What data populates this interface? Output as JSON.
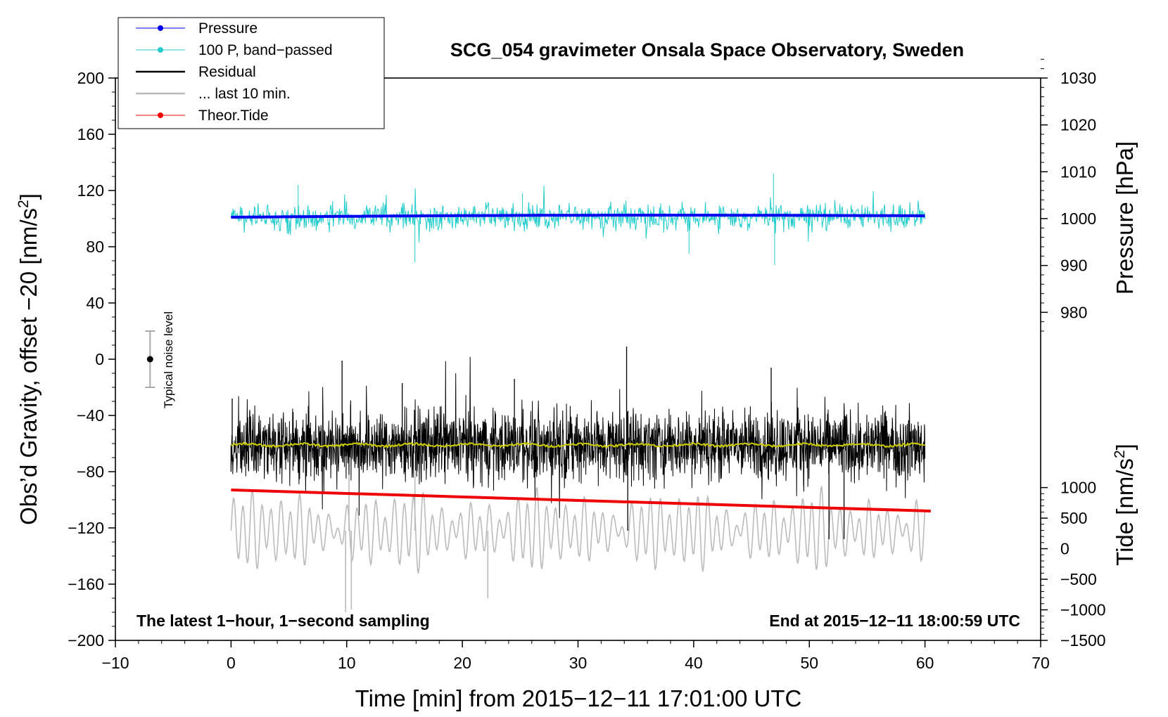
{
  "chart_data": {
    "type": "line",
    "title": "SCG_054 gravimeter Onsala Space Observatory, Sweden",
    "xlabel": "Time [min] from 2015−12−11 17:01:00 UTC",
    "ylabel_left": "Obs’d Gravity, offset −20 [nm/s",
    "ylabel_left_sup": "2",
    "ylabel_left_end": "]",
    "ylabel_pressure": "Pressure [hPa]",
    "ylabel_tide": "Tide [nm/s",
    "ylabel_tide_sup": "2",
    "ylabel_tide_end": "]",
    "xlim": [
      -10,
      70
    ],
    "ylim_left": [
      -200,
      200
    ],
    "xticks": [
      -10,
      0,
      10,
      20,
      30,
      40,
      50,
      60,
      70
    ],
    "xtick_labels": [
      "−10",
      "0",
      "10",
      "20",
      "30",
      "40",
      "50",
      "60",
      "70"
    ],
    "yticks_left": [
      200,
      160,
      120,
      80,
      40,
      0,
      -40,
      -80,
      -120,
      -160,
      -200
    ],
    "ytick_labels_left": [
      "200",
      "160",
      "120",
      "80",
      "40",
      "0",
      "−40",
      "−80",
      "−120",
      "−160",
      "−200"
    ],
    "pressure_ticks": [
      1030,
      1020,
      1010,
      1000,
      990,
      980
    ],
    "pressure_tick_labels": [
      "1030",
      "1020",
      "1010",
      "1000",
      "990",
      "980"
    ],
    "pressure_axis_map": {
      "hpa_at_left_0": 970,
      "hpa_per_left_unit": 0.3
    },
    "tide_ticks": [
      1000,
      500,
      0,
      -500,
      -1000,
      -1500
    ],
    "tide_tick_labels": [
      "1000",
      "500",
      "0",
      "−500",
      "−1000",
      "−1500"
    ],
    "tide_axis_map": {
      "tide_at_left_0": 3100,
      "tide_per_left_unit": 23.0
    },
    "legend": {
      "position": "top-left",
      "entries": [
        {
          "label": "Pressure",
          "color": "#0000ee",
          "marker": true
        },
        {
          "label": "100 P, band−passed",
          "color": "#22cccc",
          "marker": true
        },
        {
          "label": "Residual",
          "color": "#000000",
          "marker": false
        },
        {
          "label": "... last 10 min.",
          "color": "#bbbbbb",
          "marker": false
        },
        {
          "label": "Theor.Tide",
          "color": "#ee0000",
          "marker": true
        }
      ]
    },
    "annotations": {
      "bottom_left": "The latest 1−hour, 1−second sampling",
      "bottom_right": "End at 2015−12−11 18:00:59 UTC",
      "noise_label": "Typical noise level",
      "noise_bar": {
        "x": -7,
        "center": 0,
        "half_range": 20
      }
    },
    "series": [
      {
        "name": "Pressure",
        "color": "#0000ee",
        "x_range": [
          0,
          60
        ],
        "y_start": 101,
        "y_end": 102,
        "y_mid_bump": 1.5,
        "unit": "left-axis (≈1000.3≈1000.6 hPa)"
      },
      {
        "name": "100 P, band−passed",
        "color": "#22cccc",
        "x_range": [
          0,
          60
        ],
        "center": 101,
        "typical_amplitude": 8,
        "max": 132,
        "min": 67
      },
      {
        "name": "Residual",
        "color": "#000000",
        "x_range": [
          0,
          60
        ],
        "center": -61,
        "typical_amplitude": 22,
        "max": 9,
        "min": -134
      },
      {
        "name": "Residual smoothed",
        "color": "#cccc00",
        "x_range": [
          0,
          60
        ],
        "center": -61,
        "typical_amplitude": 1.5
      },
      {
        "name": "... last 10 min.",
        "color": "#bbbbbb",
        "x_range": [
          0,
          60
        ],
        "center": -122,
        "typical_amplitude": 22,
        "max": -83,
        "min": -180
      },
      {
        "name": "Theor.Tide",
        "color": "#ee0000",
        "x_range": [
          0,
          60.5
        ],
        "y_start": -93,
        "y_end": -108,
        "unit": "left-axis (tide ≈ 960 → 615 nm/s²)"
      }
    ]
  }
}
